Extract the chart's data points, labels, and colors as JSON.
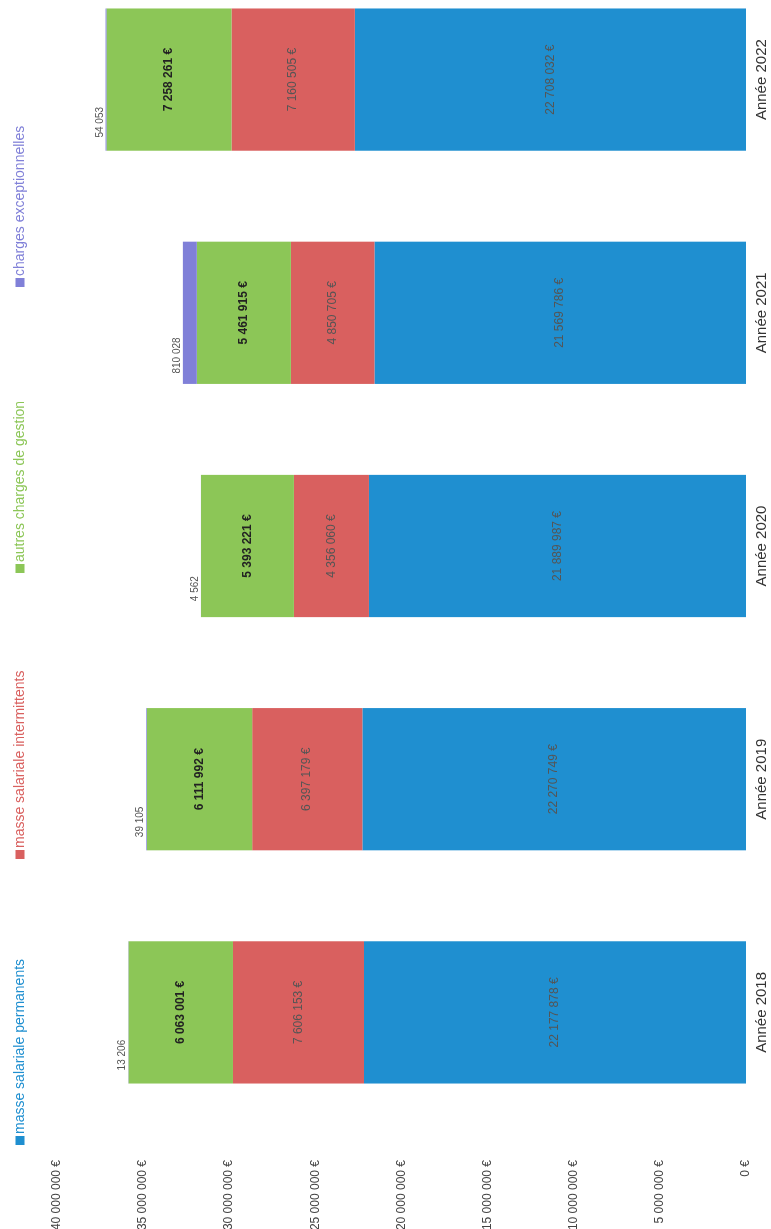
{
  "chart_data": {
    "type": "bar",
    "stacked": true,
    "orientation": "horizontal",
    "categories": [
      "Année 2022",
      "Année 2021",
      "Année 2020",
      "Année 2019",
      "Année 2018"
    ],
    "series": [
      {
        "name": "masse salariale permanents",
        "color": "#1f8fd0",
        "values": [
          22708032,
          21569786,
          21889987,
          22270749,
          22177878
        ],
        "value_labels": [
          "22 708 032 €",
          "21 569 786 €",
          "21 889 987 €",
          "22 270 749 €",
          "22 177 878 €"
        ]
      },
      {
        "name": "masse salariale intermittents",
        "color": "#d9605f",
        "values": [
          7160505,
          4850705,
          4356060,
          6397179,
          7606153
        ],
        "value_labels": [
          "7 160 505 €",
          "4 850 705 €",
          "4 356 060 €",
          "6 397 179 €",
          "7 606 153 €"
        ]
      },
      {
        "name": "autres charges de gestion",
        "color": "#8cc657",
        "values": [
          7258261,
          5461915,
          5393221,
          6111992,
          6063001
        ],
        "value_labels": [
          "7 258 261 €",
          "5 461 915 €",
          "5 393 221 €",
          "6 111 992 €",
          "6 063 001 €"
        ]
      },
      {
        "name": "charges exceptionnelles",
        "color": "#8080d8",
        "values": [
          54053,
          810028,
          4562,
          39105,
          13206
        ],
        "value_labels": [
          "54 053",
          "810 028",
          "4 562",
          "39 105",
          "13 206"
        ]
      }
    ],
    "xlim": [
      40000000,
      0
    ],
    "xticks": [
      {
        "value": 0,
        "label": "0 €"
      },
      {
        "value": 5000000,
        "label": "5 000 000 €"
      },
      {
        "value": 10000000,
        "label": "10 000 000 €"
      },
      {
        "value": 15000000,
        "label": "15 000 000 €"
      },
      {
        "value": 20000000,
        "label": "20 000 000 €"
      },
      {
        "value": 25000000,
        "label": "25 000 000 €"
      },
      {
        "value": 30000000,
        "label": "30 000 000 €"
      },
      {
        "value": 35000000,
        "label": "35 000 000 €"
      },
      {
        "value": 40000000,
        "label": "40 000 000 €"
      }
    ],
    "legend": "left",
    "grid": false
  }
}
